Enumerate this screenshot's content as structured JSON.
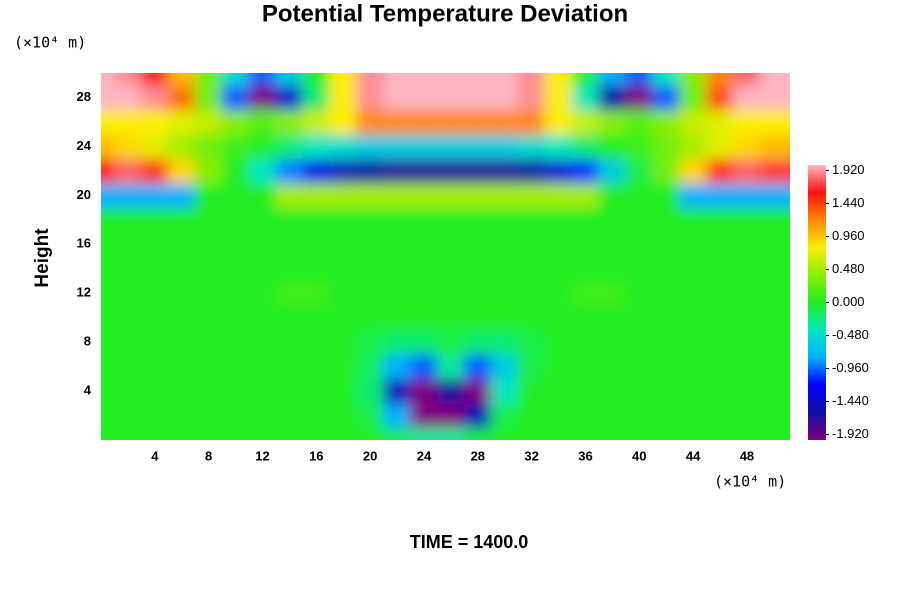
{
  "chart_data": {
    "type": "contour",
    "title": "Potential Temperature Deviation",
    "y_unit": "(×10⁴ m)",
    "x_unit": "(×10⁴ m)",
    "y_label": "Height",
    "annotation": "TIME = 1400.0",
    "xlim": [
      0,
      51.2
    ],
    "ylim": [
      0,
      30
    ],
    "xticks": [
      4,
      8,
      12,
      16,
      20,
      24,
      28,
      32,
      36,
      40,
      44,
      48
    ],
    "yticks": [
      4,
      8,
      12,
      16,
      20,
      24,
      28
    ],
    "clim": [
      -2,
      2
    ],
    "colormap": [
      "#800080",
      "#1010a0",
      "#0000ff",
      "#00b0ff",
      "#00e8c0",
      "#22ee22",
      "#88ee00",
      "#ffee00",
      "#ff8800",
      "#ff1010",
      "#ffb6c1"
    ],
    "colorbar_ticks": [
      {
        "value": 1.92,
        "label": "1.920"
      },
      {
        "value": 1.44,
        "label": "1.440"
      },
      {
        "value": 0.96,
        "label": "0.960"
      },
      {
        "value": 0.48,
        "label": "0.480"
      },
      {
        "value": 0,
        "label": "0.000"
      },
      {
        "value": -0.48,
        "label": "-0.480"
      },
      {
        "value": -0.96,
        "label": "-0.960"
      },
      {
        "value": -1.44,
        "label": "-1.440"
      },
      {
        "value": -1.92,
        "label": "-1.920"
      }
    ],
    "x": [
      0,
      2,
      4,
      6,
      8,
      10,
      12,
      14,
      16,
      18,
      20,
      22,
      24,
      26,
      28,
      30,
      32,
      34,
      36,
      38,
      40,
      42,
      44,
      46,
      48,
      50
    ],
    "y": [
      0,
      2,
      4,
      6,
      8,
      10,
      12,
      14,
      16,
      18,
      20,
      22,
      24,
      26,
      28,
      30
    ],
    "z": [
      [
        0,
        0,
        0,
        0,
        0,
        0,
        0,
        0,
        0,
        0,
        0,
        -0.1,
        -0.3,
        -0.3,
        -0.1,
        0,
        0,
        0,
        0,
        0,
        0,
        0,
        0,
        0,
        0,
        0
      ],
      [
        0,
        0,
        0,
        0,
        0,
        0,
        0,
        0,
        0,
        0,
        -0.1,
        -0.8,
        -2.0,
        -2.0,
        -1.5,
        -0.1,
        0,
        0,
        0,
        0,
        0,
        0,
        0,
        0,
        0,
        0
      ],
      [
        0,
        0,
        0,
        0,
        0,
        0,
        0,
        0,
        0,
        0,
        -0.2,
        -1.5,
        -2.0,
        -1.6,
        -2.0,
        -0.4,
        0,
        0,
        0,
        0,
        0,
        0,
        0,
        0,
        0,
        0
      ],
      [
        0,
        0,
        0,
        0,
        0,
        0,
        0,
        0,
        0,
        0,
        -0.15,
        -0.8,
        -1.0,
        -0.3,
        -1.0,
        -0.6,
        -0.1,
        0,
        0,
        0,
        0,
        0,
        0,
        0,
        0,
        0
      ],
      [
        0,
        0,
        0,
        0,
        0,
        0,
        0,
        0,
        0,
        0,
        -0.1,
        -0.2,
        -0.2,
        -0.1,
        -0.2,
        -0.2,
        -0.1,
        0,
        0,
        0,
        0,
        0,
        0,
        0,
        0,
        0
      ],
      [
        0,
        0,
        0,
        0,
        0,
        0,
        0,
        0,
        0,
        0,
        0,
        0,
        0,
        0,
        0,
        0,
        0,
        0,
        0,
        0,
        0,
        0,
        0,
        0,
        0,
        0
      ],
      [
        0,
        0,
        0,
        0,
        0,
        0,
        0,
        0.1,
        0.1,
        0,
        0,
        0,
        0,
        0,
        0,
        0,
        0,
        0,
        0.1,
        0.1,
        0,
        0,
        0,
        0,
        0,
        0
      ],
      [
        0,
        0,
        0,
        0,
        0,
        0,
        0,
        0,
        0,
        0,
        0,
        0,
        0,
        0,
        0,
        0,
        0,
        0,
        0,
        0,
        0,
        0,
        0,
        0,
        0,
        0
      ],
      [
        0,
        0,
        0,
        0,
        0,
        0,
        0,
        0,
        0,
        0,
        0,
        0,
        0,
        0,
        0,
        0,
        0,
        0,
        0,
        0,
        0,
        0,
        0,
        0,
        0,
        0
      ],
      [
        0,
        0,
        0,
        0,
        0,
        0,
        0,
        0,
        0,
        0,
        0,
        0,
        0,
        0,
        0,
        0,
        0,
        0,
        0,
        0,
        0,
        0,
        0,
        0,
        0,
        0
      ],
      [
        -0.8,
        -0.8,
        -0.8,
        -0.8,
        0,
        0,
        0,
        0.5,
        0.5,
        0.5,
        0.5,
        0.5,
        0.5,
        0.5,
        0.5,
        0.5,
        0.5,
        0.5,
        0.5,
        0,
        0,
        0,
        -0.8,
        -0.8,
        -0.8,
        -0.8
      ],
      [
        1.6,
        1.8,
        1.5,
        0.9,
        0.4,
        0,
        -0.4,
        -0.9,
        -1.3,
        -1.5,
        -1.6,
        -1.7,
        -1.7,
        -1.7,
        -1.7,
        -1.7,
        -1.6,
        -1.4,
        -1.1,
        -0.6,
        -0.1,
        0.3,
        0.9,
        1.5,
        1.8,
        1.7
      ],
      [
        1.0,
        0.9,
        0.7,
        0.5,
        0.3,
        0.1,
        0,
        -0.2,
        -0.4,
        -0.5,
        -0.6,
        -0.6,
        -0.6,
        -0.6,
        -0.6,
        -0.6,
        -0.5,
        -0.4,
        -0.2,
        0,
        0.1,
        0.3,
        0.5,
        0.7,
        0.9,
        1.0
      ],
      [
        0.8,
        0.8,
        0.8,
        0.7,
        0.6,
        0.4,
        0.2,
        0.4,
        0.6,
        0.8,
        1.2,
        1.2,
        1.2,
        1.2,
        1.2,
        1.2,
        1.2,
        0.8,
        0.6,
        0.4,
        0.2,
        0.4,
        0.6,
        0.7,
        0.8,
        0.8
      ],
      [
        2.0,
        2.0,
        1.9,
        1.3,
        0.3,
        -1.0,
        -2.0,
        -1.4,
        -0.2,
        0.8,
        1.9,
        2.0,
        2.0,
        2.0,
        2.0,
        2.0,
        1.9,
        0.8,
        -0.4,
        -1.6,
        -2.0,
        -1.0,
        0.3,
        1.4,
        2.0,
        2.0
      ],
      [
        2.0,
        1.9,
        1.6,
        1.0,
        0.3,
        -0.5,
        -1.0,
        -0.6,
        0,
        0.8,
        1.9,
        2.0,
        2.0,
        2.0,
        2.0,
        2.0,
        1.9,
        0.8,
        0,
        -0.8,
        -1.0,
        -0.4,
        0.4,
        1.2,
        1.8,
        2.0
      ]
    ]
  }
}
